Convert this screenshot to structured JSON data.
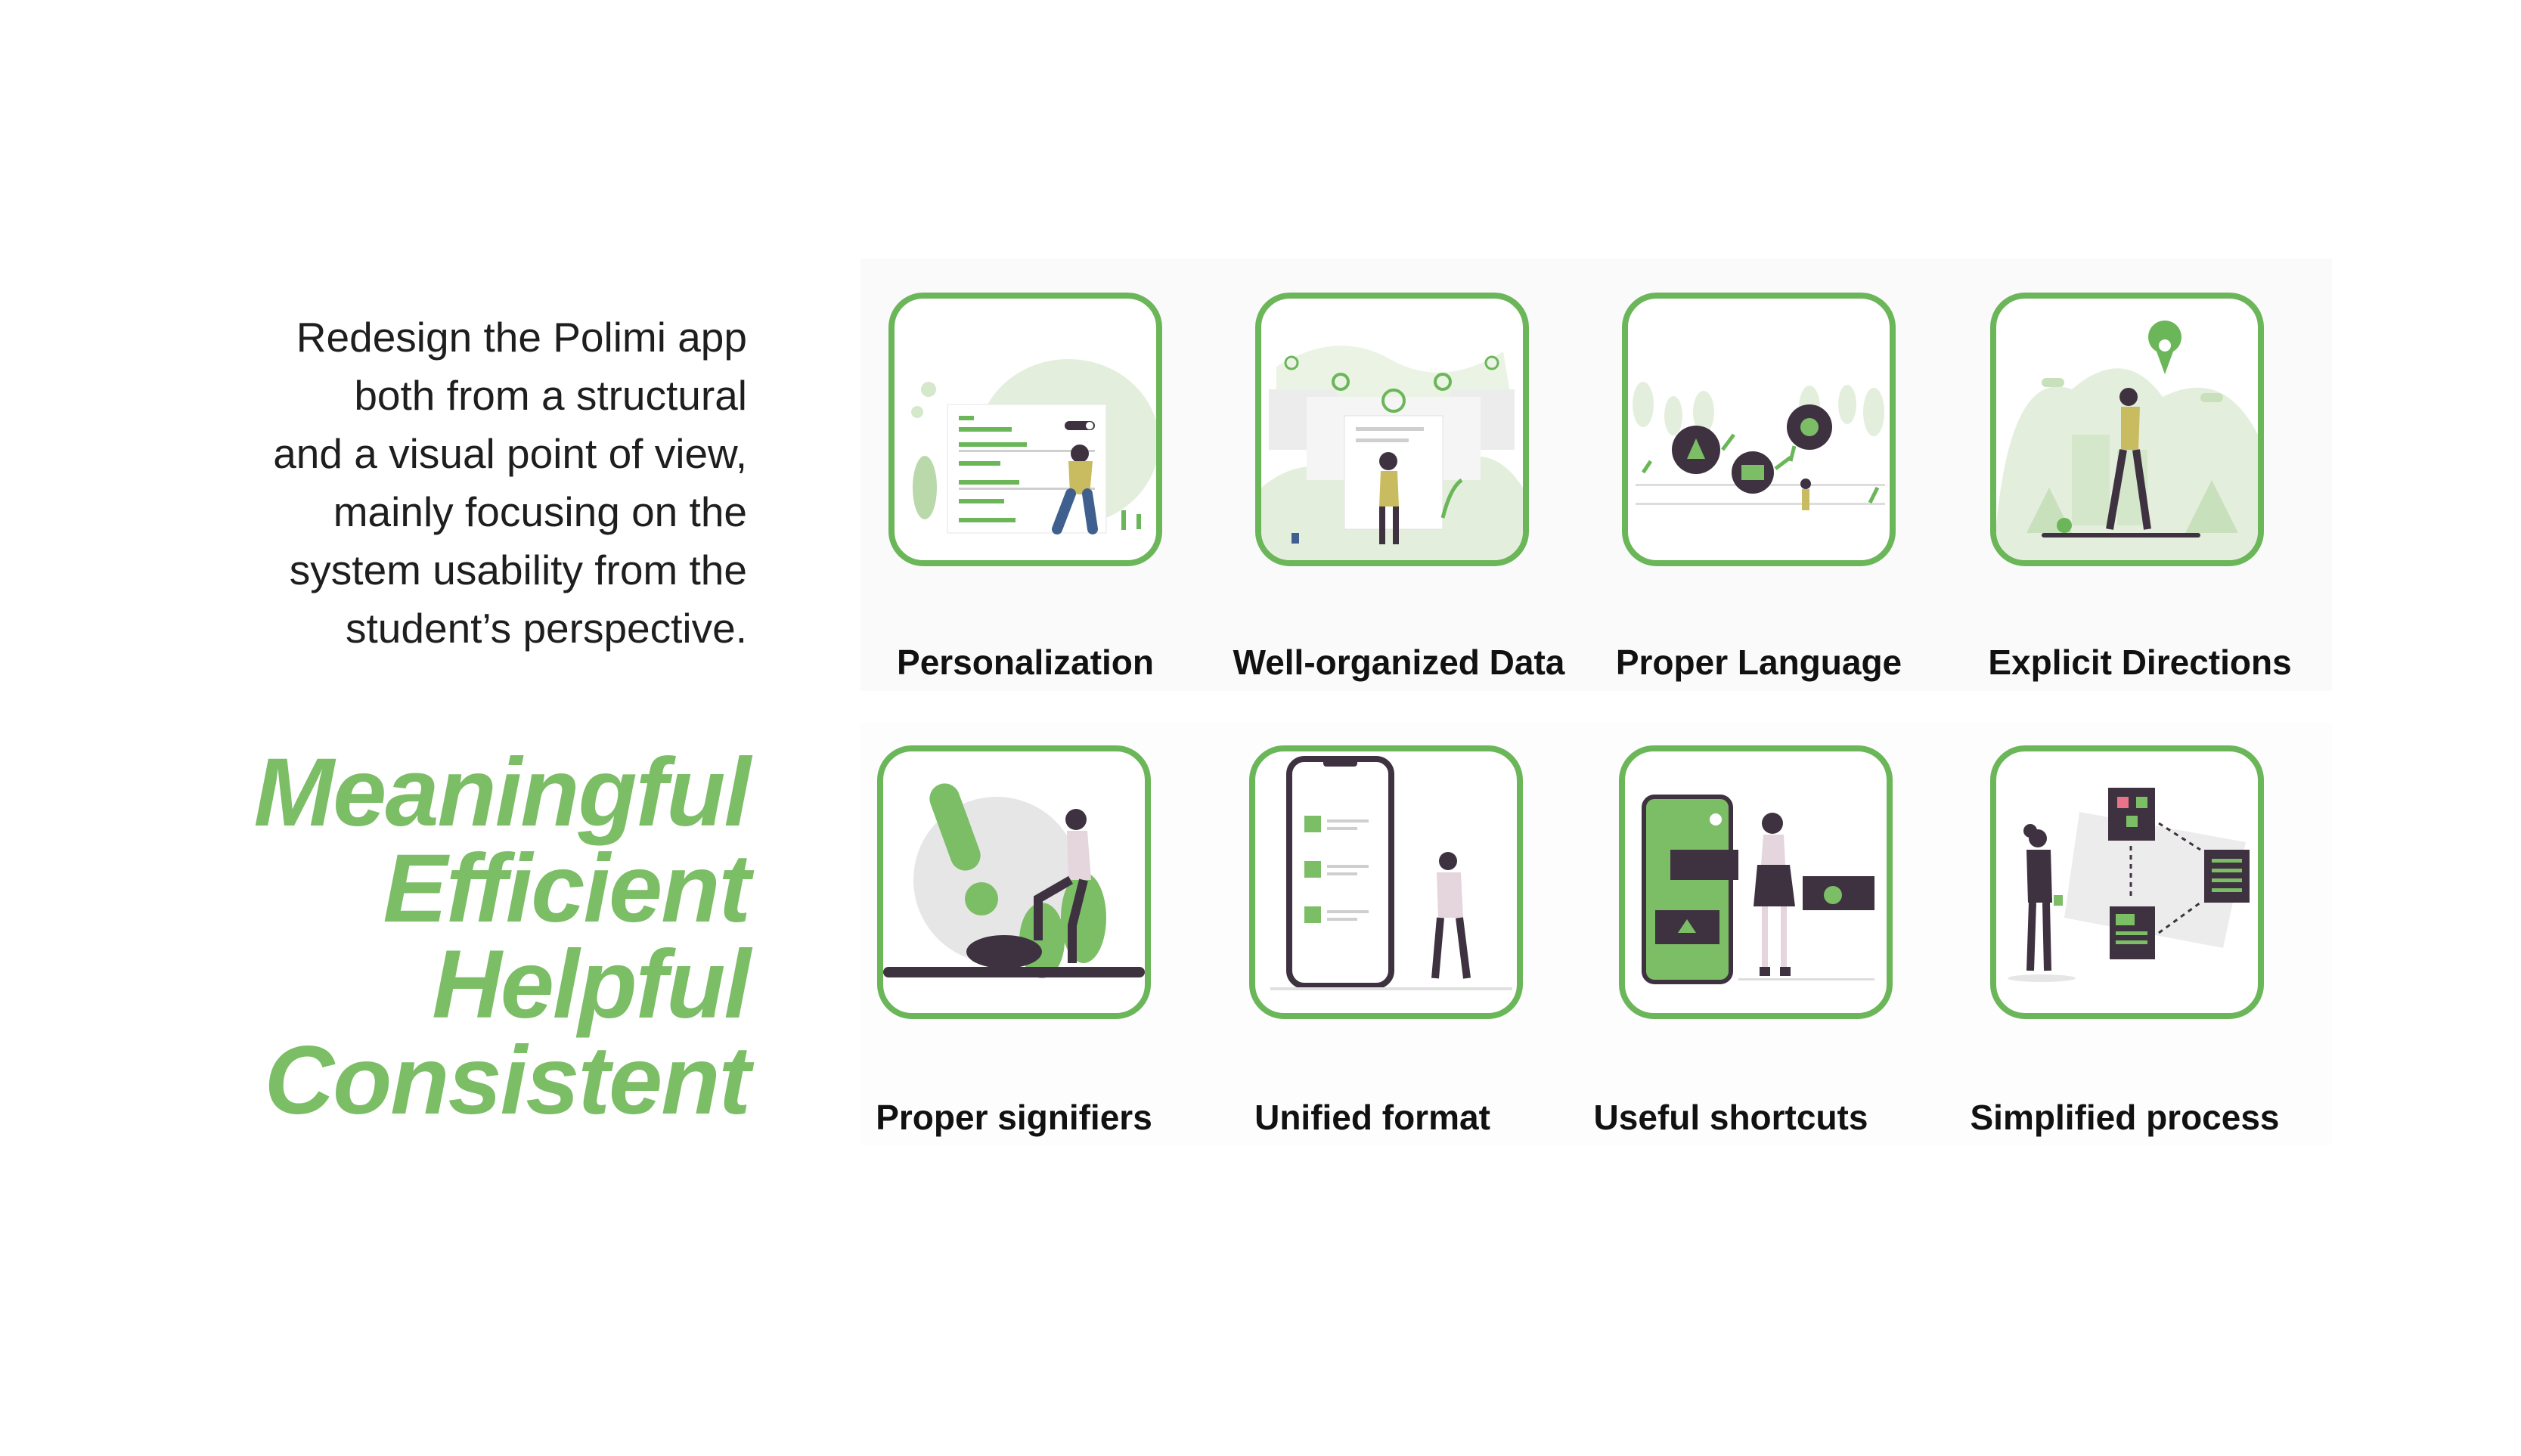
{
  "intro": {
    "lines": [
      "Redesign the Polimi app",
      "both from a structural",
      "and a visual point of view,",
      "mainly focusing on the",
      "system usability from the",
      "student’s perspective."
    ]
  },
  "keywords": [
    "Meaningful",
    "Efficient",
    "Helpful",
    "Consistent"
  ],
  "cards": [
    {
      "label": "Personalization"
    },
    {
      "label": "Well-organized Data"
    },
    {
      "label": "Proper Language"
    },
    {
      "label": "Explicit Directions"
    },
    {
      "label": "Proper signifiers"
    },
    {
      "label": "Unified format"
    },
    {
      "label": "Useful shortcuts"
    },
    {
      "label": "Simplified process"
    }
  ],
  "colors": {
    "accent_green": "#7cbe66",
    "border_green": "#6cb65a",
    "dark_purple": "#3f3240",
    "light_green": "#dcebd5"
  }
}
